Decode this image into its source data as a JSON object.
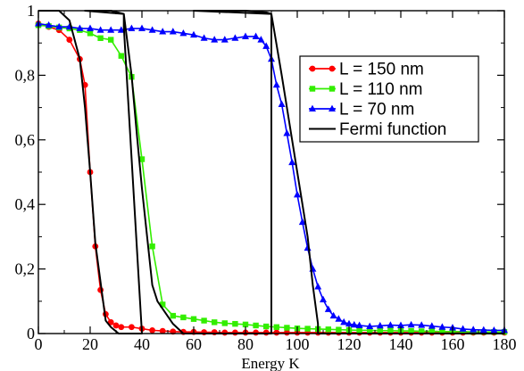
{
  "chart_data": {
    "type": "line",
    "xlabel": "Energy K",
    "ylabel": "",
    "xlim": [
      0,
      180
    ],
    "ylim": [
      0,
      1
    ],
    "grid": false,
    "legend_placement": "top-right",
    "x_ticks": [
      {
        "value": 0,
        "label": "0"
      },
      {
        "value": 20,
        "label": "20"
      },
      {
        "value": 40,
        "label": "40"
      },
      {
        "value": 60,
        "label": "60"
      },
      {
        "value": 80,
        "label": "80"
      },
      {
        "value": 100,
        "label": "100"
      },
      {
        "value": 120,
        "label": "120"
      },
      {
        "value": 140,
        "label": "140"
      },
      {
        "value": 160,
        "label": "160"
      },
      {
        "value": 180,
        "label": "180"
      }
    ],
    "y_ticks": [
      {
        "value": 0,
        "label": "0"
      },
      {
        "value": 0.2,
        "label": "0,2"
      },
      {
        "value": 0.4,
        "label": "0,4"
      },
      {
        "value": 0.6,
        "label": "0,6"
      },
      {
        "value": 0.8,
        "label": "0,8"
      },
      {
        "value": 1,
        "label": "1"
      }
    ],
    "series": [
      {
        "name": "L = 150 nm",
        "color": "#ff0000",
        "marker": "circle",
        "points": [
          [
            0,
            0.96
          ],
          [
            4,
            0.95
          ],
          [
            8,
            0.94
          ],
          [
            12,
            0.91
          ],
          [
            16,
            0.85
          ],
          [
            18,
            0.77
          ],
          [
            20,
            0.5
          ],
          [
            22,
            0.27
          ],
          [
            24,
            0.135
          ],
          [
            26,
            0.06
          ],
          [
            28,
            0.035
          ],
          [
            30,
            0.025
          ],
          [
            32,
            0.02
          ],
          [
            36,
            0.02
          ],
          [
            40,
            0.015
          ],
          [
            44,
            0.01
          ],
          [
            48,
            0.008
          ],
          [
            52,
            0.006
          ],
          [
            56,
            0.005
          ],
          [
            60,
            0.005
          ],
          [
            64,
            0.004
          ],
          [
            68,
            0.004
          ],
          [
            72,
            0.003
          ],
          [
            76,
            0.003
          ],
          [
            80,
            0.003
          ],
          [
            84,
            0.003
          ],
          [
            88,
            0.003
          ],
          [
            92,
            0.003
          ],
          [
            96,
            0.003
          ],
          [
            100,
            0.003
          ],
          [
            104,
            0.003
          ],
          [
            108,
            0.003
          ],
          [
            112,
            0.003
          ],
          [
            116,
            0.003
          ],
          [
            120,
            0.003
          ],
          [
            124,
            0.003
          ],
          [
            128,
            0.003
          ],
          [
            132,
            0.003
          ],
          [
            136,
            0.003
          ],
          [
            140,
            0.003
          ],
          [
            144,
            0.003
          ],
          [
            148,
            0.003
          ],
          [
            152,
            0.003
          ],
          [
            156,
            0.003
          ],
          [
            160,
            0.003
          ],
          [
            164,
            0.003
          ],
          [
            168,
            0.003
          ],
          [
            172,
            0.003
          ],
          [
            176,
            0.003
          ],
          [
            180,
            0.003
          ]
        ]
      },
      {
        "name": "L = 110 nm",
        "color": "#33ee00",
        "marker": "square",
        "points": [
          [
            0,
            0.955
          ],
          [
            4,
            0.952
          ],
          [
            8,
            0.948
          ],
          [
            12,
            0.945
          ],
          [
            16,
            0.94
          ],
          [
            20,
            0.93
          ],
          [
            24,
            0.915
          ],
          [
            28,
            0.91
          ],
          [
            32,
            0.86
          ],
          [
            36,
            0.795
          ],
          [
            40,
            0.54
          ],
          [
            44,
            0.27
          ],
          [
            48,
            0.09
          ],
          [
            52,
            0.055
          ],
          [
            56,
            0.05
          ],
          [
            60,
            0.045
          ],
          [
            64,
            0.04
          ],
          [
            68,
            0.035
          ],
          [
            72,
            0.032
          ],
          [
            76,
            0.03
          ],
          [
            80,
            0.028
          ],
          [
            84,
            0.025
          ],
          [
            88,
            0.022
          ],
          [
            92,
            0.02
          ],
          [
            96,
            0.018
          ],
          [
            100,
            0.016
          ],
          [
            104,
            0.015
          ],
          [
            108,
            0.014
          ],
          [
            112,
            0.013
          ],
          [
            116,
            0.012
          ],
          [
            120,
            0.011
          ],
          [
            124,
            0.01
          ],
          [
            128,
            0.01
          ],
          [
            132,
            0.009
          ],
          [
            136,
            0.009
          ],
          [
            140,
            0.008
          ],
          [
            144,
            0.008
          ],
          [
            148,
            0.007
          ],
          [
            152,
            0.007
          ],
          [
            156,
            0.006
          ],
          [
            160,
            0.006
          ],
          [
            164,
            0.006
          ],
          [
            168,
            0.005
          ],
          [
            172,
            0.005
          ],
          [
            176,
            0.005
          ],
          [
            180,
            0.005
          ]
        ]
      },
      {
        "name": "L = 70 nm",
        "color": "#0000ff",
        "marker": "triangle",
        "points": [
          [
            0,
            0.96
          ],
          [
            4,
            0.955
          ],
          [
            8,
            0.95
          ],
          [
            12,
            0.95
          ],
          [
            16,
            0.945
          ],
          [
            20,
            0.945
          ],
          [
            24,
            0.94
          ],
          [
            28,
            0.94
          ],
          [
            32,
            0.94
          ],
          [
            36,
            0.945
          ],
          [
            40,
            0.945
          ],
          [
            44,
            0.94
          ],
          [
            48,
            0.935
          ],
          [
            52,
            0.935
          ],
          [
            56,
            0.93
          ],
          [
            60,
            0.925
          ],
          [
            64,
            0.915
          ],
          [
            68,
            0.91
          ],
          [
            72,
            0.91
          ],
          [
            76,
            0.915
          ],
          [
            80,
            0.92
          ],
          [
            84,
            0.92
          ],
          [
            86,
            0.91
          ],
          [
            88,
            0.89
          ],
          [
            90,
            0.85
          ],
          [
            92,
            0.77
          ],
          [
            94,
            0.71
          ],
          [
            96,
            0.62
          ],
          [
            98,
            0.53
          ],
          [
            100,
            0.43
          ],
          [
            102,
            0.345
          ],
          [
            104,
            0.265
          ],
          [
            106,
            0.2
          ],
          [
            108,
            0.145
          ],
          [
            110,
            0.105
          ],
          [
            112,
            0.075
          ],
          [
            114,
            0.055
          ],
          [
            116,
            0.045
          ],
          [
            118,
            0.035
          ],
          [
            120,
            0.03
          ],
          [
            122,
            0.027
          ],
          [
            124,
            0.025
          ],
          [
            128,
            0.022
          ],
          [
            132,
            0.024
          ],
          [
            136,
            0.026
          ],
          [
            140,
            0.025
          ],
          [
            144,
            0.027
          ],
          [
            148,
            0.026
          ],
          [
            152,
            0.023
          ],
          [
            156,
            0.02
          ],
          [
            160,
            0.018
          ],
          [
            164,
            0.014
          ],
          [
            168,
            0.012
          ],
          [
            172,
            0.011
          ],
          [
            176,
            0.01
          ],
          [
            180,
            0.01
          ]
        ]
      },
      {
        "name": "Fermi function",
        "color": "#000000",
        "marker": "none",
        "points": [
          [
            0,
            1.0
          ],
          [
            8,
            1.0
          ],
          [
            12,
            0.97
          ],
          [
            16,
            0.85
          ],
          [
            18,
            0.7
          ],
          [
            20,
            0.5
          ],
          [
            22,
            0.28
          ],
          [
            26,
            0.04
          ],
          [
            28,
            0.02
          ],
          [
            31,
            0.0
          ],
          [
            40,
            0.0
          ],
          [
            33,
            0.95
          ],
          [
            33,
            0.99
          ],
          [
            28,
            1.0
          ],
          [
            18,
            1.0
          ],
          [
            33,
            0.99
          ],
          [
            36,
            0.8
          ],
          [
            38,
            0.62
          ],
          [
            40,
            0.45
          ],
          [
            42,
            0.3
          ],
          [
            44,
            0.15
          ],
          [
            46,
            0.1
          ],
          [
            52,
            0.03
          ],
          [
            56,
            0.0
          ],
          [
            90,
            0.0
          ],
          [
            90,
            0.99
          ],
          [
            88,
            0.995
          ],
          [
            80,
            1.0
          ],
          [
            60,
            1.0
          ],
          [
            90,
            0.99
          ],
          [
            94,
            0.8
          ],
          [
            98,
            0.6
          ],
          [
            102,
            0.4
          ],
          [
            104,
            0.3
          ],
          [
            106,
            0.15
          ],
          [
            108,
            0.03
          ],
          [
            108,
            0.0
          ],
          [
            180,
            0.0
          ]
        ]
      }
    ]
  }
}
